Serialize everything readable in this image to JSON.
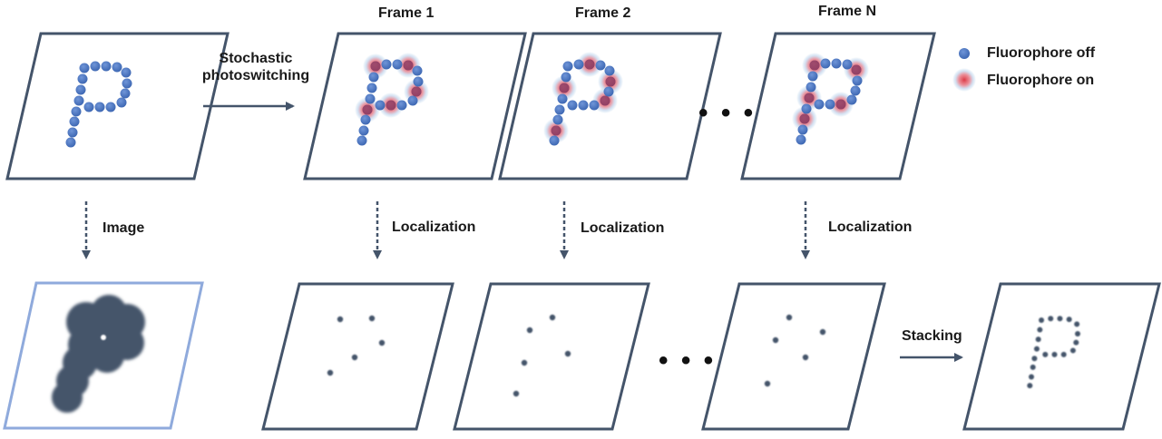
{
  "frames": {
    "frame1": "Frame 1",
    "frame2": "Frame 2",
    "frameN": "Frame N"
  },
  "arrows": {
    "switching": "Stochastic\nphotoswitching",
    "image": "Image",
    "localization_1": "Localization",
    "localization_2": "Localization",
    "localization_n": "Localization",
    "stacking": "Stacking"
  },
  "ellipsis": {
    "top": "• • •",
    "bottom": "• • •"
  },
  "legend": {
    "off_label": "Fluorophore off",
    "on_label": "Fluorophore on"
  },
  "colors": {
    "panel_border": "#44546a",
    "image_panel_border": "#8faadc",
    "fluorophore_off": "#4472c4",
    "fluorophore_on": "#e0505a",
    "halo": "#bdd7ee",
    "blur": "#44546a",
    "arrow": "#44546a"
  }
}
